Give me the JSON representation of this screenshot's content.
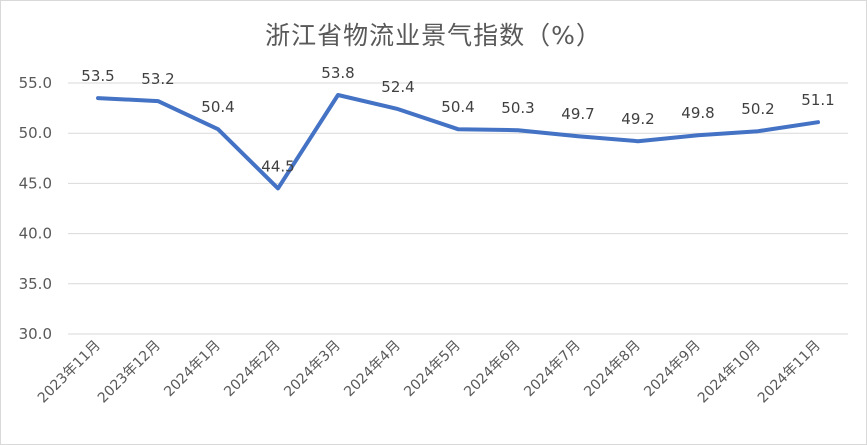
{
  "chart_data": {
    "type": "line",
    "title": "浙江省物流业景气指数（%）",
    "xlabel": "",
    "ylabel": "",
    "categories": [
      "2023年11月",
      "2023年12月",
      "2024年1月",
      "2024年2月",
      "2024年3月",
      "2024年4月",
      "2024年5月",
      "2024年6月",
      "2024年7月",
      "2024年8月",
      "2024年9月",
      "2024年10月",
      "2024年11月"
    ],
    "series": [
      {
        "values": [
          53.5,
          53.2,
          50.4,
          44.5,
          53.8,
          52.4,
          50.4,
          50.3,
          49.7,
          49.2,
          49.8,
          50.2,
          51.1
        ]
      }
    ],
    "data_labels": [
      "53.5",
      "53.2",
      "50.4",
      "44.5",
      "53.8",
      "52.4",
      "50.4",
      "50.3",
      "49.7",
      "49.2",
      "49.8",
      "50.2",
      "51.1"
    ],
    "yticks": [
      "30.0",
      "35.0",
      "40.0",
      "45.0",
      "50.0",
      "55.0"
    ],
    "ylim": [
      30,
      55
    ],
    "grid": true,
    "legend": "none",
    "colors": {
      "line": "#4472C4",
      "grid": "#d9d9d9",
      "text": "#595959"
    }
  }
}
